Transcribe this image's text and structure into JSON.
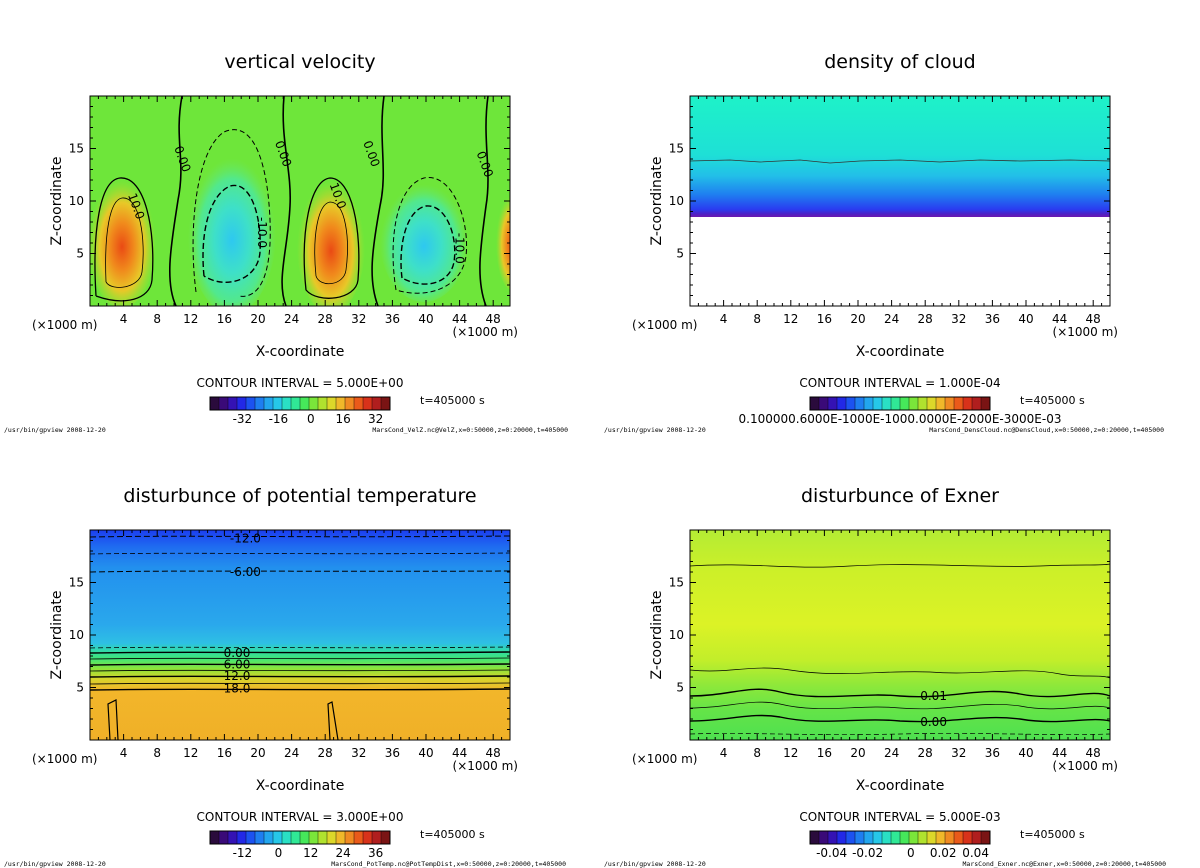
{
  "chart_data": [
    {
      "type": "heatmap",
      "id": "p1",
      "title": "vertical velocity",
      "xlabel": "X-coordinate",
      "ylabel": "Z-coordinate",
      "x_unit_left": "(×1000 m)",
      "x_unit_right": "(×1000 m)",
      "xticks": [
        4,
        8,
        12,
        16,
        20,
        24,
        28,
        32,
        36,
        40,
        44,
        48
      ],
      "yticks": [
        5,
        10,
        15
      ],
      "xlim": [
        0,
        50
      ],
      "ylim": [
        0,
        20
      ],
      "contour_interval": "CONTOUR INTERVAL = 5.000E+00",
      "time": "t=405000 s",
      "colorbar_ticks": [
        "-32",
        "-16",
        "0",
        "16",
        "32"
      ],
      "footer_left": "/usr/bin/gpview  2008-12-20",
      "footer_right": "MarsCond_VelZ.nc@VelZ,x=0:50000,z=0:20000,t=405000",
      "contour_labels": [
        {
          "text": "10.0",
          "x": 5.5,
          "z": 9.5
        },
        {
          "text": "0.00",
          "x": 11,
          "z": 14
        },
        {
          "text": "0.00",
          "x": 23,
          "z": 14.5
        },
        {
          "text": "10.0",
          "x": 29.5,
          "z": 10.5
        },
        {
          "text": "-10.0",
          "x": 20.5,
          "z": 7
        },
        {
          "text": "0.00",
          "x": 33.5,
          "z": 14.5
        },
        {
          "text": "-10.0",
          "x": 44,
          "z": 5.5
        },
        {
          "text": "0.00",
          "x": 47,
          "z": 13.5
        }
      ]
    },
    {
      "type": "heatmap",
      "id": "p2",
      "title": "density of cloud",
      "xlabel": "X-coordinate",
      "ylabel": "Z-coordinate",
      "x_unit_left": "(×1000 m)",
      "x_unit_right": "(×1000 m)",
      "xticks": [
        4,
        8,
        12,
        16,
        20,
        24,
        28,
        32,
        36,
        40,
        44,
        48
      ],
      "yticks": [
        5,
        10,
        15
      ],
      "xlim": [
        0,
        50
      ],
      "ylim": [
        0,
        20
      ],
      "contour_interval": "CONTOUR INTERVAL = 1.000E-04",
      "time": "t=405000 s",
      "colorbar_ticks": [
        "0.100000.6000E-1000E-1000.0000E-2000E-3000E-03"
      ],
      "footer_left": "/usr/bin/gpview  2008-12-20",
      "footer_right": "MarsCond_DensCloud.nc@DensCloud,x=0:50000,z=0:20000,t=405000",
      "contour_labels": []
    },
    {
      "type": "heatmap",
      "id": "p3",
      "title": "disturbunce of potential temperature",
      "xlabel": "X-coordinate",
      "ylabel": "Z-coordinate",
      "x_unit_left": "(×1000 m)",
      "x_unit_right": "(×1000 m)",
      "xticks": [
        4,
        8,
        12,
        16,
        20,
        24,
        28,
        32,
        36,
        40,
        44,
        48
      ],
      "yticks": [
        5,
        10,
        15
      ],
      "xlim": [
        0,
        50
      ],
      "ylim": [
        0,
        20
      ],
      "contour_interval": "CONTOUR INTERVAL = 3.000E+00",
      "time": "t=405000 s",
      "colorbar_ticks": [
        "-12",
        "0",
        "12",
        "24",
        "36"
      ],
      "footer_left": "/usr/bin/gpview  2008-12-20",
      "footer_right": "MarsCond_PotTemp.nc@PotTempDist,x=0:50000,z=0:20000,t=405000",
      "contour_labels": [
        {
          "text": "-12.0",
          "x": 18.5,
          "z": 19.2
        },
        {
          "text": "-6.00",
          "x": 18.5,
          "z": 16
        },
        {
          "text": "0.00",
          "x": 17.5,
          "z": 8.3
        },
        {
          "text": "6.00",
          "x": 17.5,
          "z": 7.2
        },
        {
          "text": "12.0",
          "x": 17.5,
          "z": 6.1
        },
        {
          "text": "18.0",
          "x": 17.5,
          "z": 4.9
        }
      ]
    },
    {
      "type": "heatmap",
      "id": "p4",
      "title": "disturbunce of Exner",
      "xlabel": "X-coordinate",
      "ylabel": "Z-coordinate",
      "x_unit_left": "(×1000 m)",
      "x_unit_right": "(×1000 m)",
      "xticks": [
        4,
        8,
        12,
        16,
        20,
        24,
        28,
        32,
        36,
        40,
        44,
        48
      ],
      "yticks": [
        5,
        10,
        15
      ],
      "xlim": [
        0,
        50
      ],
      "ylim": [
        0,
        20
      ],
      "contour_interval": "CONTOUR INTERVAL = 5.000E-03",
      "time": "t=405000 s",
      "colorbar_ticks": [
        "-0.04",
        "-0.02",
        "0",
        "0.02",
        "0.04"
      ],
      "footer_left": "/usr/bin/gpview  2008-12-20",
      "footer_right": "MarsCond_Exner.nc@Exner,x=0:50000,z=0:20000,t=405000",
      "contour_labels": [
        {
          "text": "0.01",
          "x": 29,
          "z": 4.2
        },
        {
          "text": "0.00",
          "x": 29,
          "z": 1.7
        }
      ]
    }
  ]
}
